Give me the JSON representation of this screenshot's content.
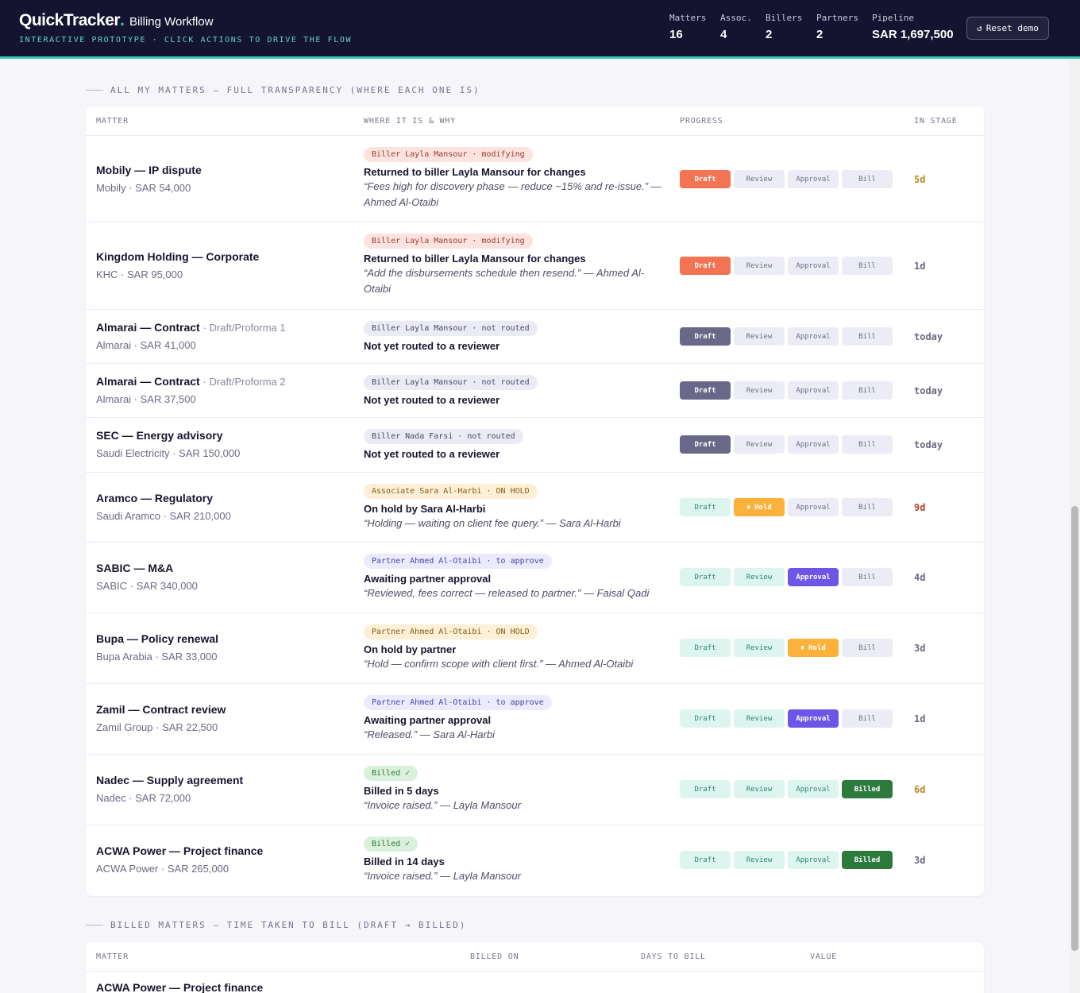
{
  "header": {
    "brand": "QuickTracker",
    "brand_dot": ".",
    "brand_sub": "Billing Workflow",
    "tagline": "INTERACTIVE PROTOTYPE · CLICK ACTIONS TO DRIVE THE FLOW",
    "stats": [
      {
        "label": "Matters",
        "value": "16"
      },
      {
        "label": "Assoc.",
        "value": "4"
      },
      {
        "label": "Billers",
        "value": "2"
      },
      {
        "label": "Partners",
        "value": "2"
      },
      {
        "label": "Pipeline",
        "value": "SAR 1,697,500"
      }
    ],
    "reset_icon": "↺",
    "reset_label": "Reset demo"
  },
  "matters_section": {
    "title": "ALL MY MATTERS — FULL TRANSPARENCY (WHERE EACH ONE IS)",
    "columns": [
      "MATTER",
      "WHERE IT IS & WHY",
      "PROGRESS",
      "IN STAGE"
    ],
    "stage_labels": [
      "Draft",
      "Review",
      "Approval",
      "Bill"
    ],
    "rows": [
      {
        "title": "Mobily — IP dispute",
        "sub": "",
        "client": "Mobily · SAR 54,000",
        "tag": "Biller Layla Mansour · modifying",
        "status": "Returned to biller Layla Mansour for changes",
        "quote": "“Fees high for discovery phase — reduce ~15% and re-issue.” — Ahmed Al-Otaibi",
        "pills": [
          "Draft",
          "Review",
          "Approval",
          "Bill"
        ],
        "in_stage": "5d"
      },
      {
        "title": "Kingdom Holding — Corporate",
        "sub": "",
        "client": "KHC · SAR 95,000",
        "tag": "Biller Layla Mansour · modifying",
        "status": "Returned to biller Layla Mansour for changes",
        "quote": "“Add the disbursements schedule then resend.” — Ahmed Al-Otaibi",
        "pills": [
          "Draft",
          "Review",
          "Approval",
          "Bill"
        ],
        "in_stage": "1d"
      },
      {
        "title": "Almarai — Contract",
        "sub": "· Draft/Proforma 1",
        "client": "Almarai · SAR 41,000",
        "tag": "Biller Layla Mansour · not routed",
        "status": "Not yet routed to a reviewer",
        "quote": "",
        "pills": [
          "Draft",
          "Review",
          "Approval",
          "Bill"
        ],
        "in_stage": "today"
      },
      {
        "title": "Almarai — Contract",
        "sub": "· Draft/Proforma 2",
        "client": "Almarai · SAR 37,500",
        "tag": "Biller Layla Mansour · not routed",
        "status": "Not yet routed to a reviewer",
        "quote": "",
        "pills": [
          "Draft",
          "Review",
          "Approval",
          "Bill"
        ],
        "in_stage": "today"
      },
      {
        "title": "SEC — Energy advisory",
        "sub": "",
        "client": "Saudi Electricity · SAR 150,000",
        "tag": "Biller Nada Farsi · not routed",
        "status": "Not yet routed to a reviewer",
        "quote": "",
        "pills": [
          "Draft",
          "Review",
          "Approval",
          "Bill"
        ],
        "in_stage": "today"
      },
      {
        "title": "Aramco — Regulatory",
        "sub": "",
        "client": "Saudi Aramco · SAR 210,000",
        "tag": "Associate Sara Al-Harbi · ON HOLD",
        "status": "On hold by Sara Al-Harbi",
        "quote": "“Holding — waiting on client fee query.” — Sara Al-Harbi",
        "pills": [
          "Draft",
          "⏸ Hold",
          "Approval",
          "Bill"
        ],
        "in_stage": "9d"
      },
      {
        "title": "SABIC — M&A",
        "sub": "",
        "client": "SABIC · SAR 340,000",
        "tag": "Partner Ahmed Al-Otaibi · to approve",
        "status": "Awaiting partner approval",
        "quote": "“Reviewed, fees correct — released to partner.” — Faisal Qadi",
        "pills": [
          "Draft",
          "Review",
          "Approval",
          "Bill"
        ],
        "in_stage": "4d"
      },
      {
        "title": "Bupa — Policy renewal",
        "sub": "",
        "client": "Bupa Arabia · SAR 33,000",
        "tag": "Partner Ahmed Al-Otaibi · ON HOLD",
        "status": "On hold by partner",
        "quote": "“Hold — confirm scope with client first.” — Ahmed Al-Otaibi",
        "pills": [
          "Draft",
          "Review",
          "⏸ Hold",
          "Bill"
        ],
        "in_stage": "3d"
      },
      {
        "title": "Zamil — Contract review",
        "sub": "",
        "client": "Zamil Group · SAR 22,500",
        "tag": "Partner Ahmed Al-Otaibi · to approve",
        "status": "Awaiting partner approval",
        "quote": "“Released.” — Sara Al-Harbi",
        "pills": [
          "Draft",
          "Review",
          "Approval",
          "Bill"
        ],
        "in_stage": "1d"
      },
      {
        "title": "Nadec — Supply agreement",
        "sub": "",
        "client": "Nadec · SAR 72,000",
        "tag": "Billed ✓",
        "status": "Billed in 5 days",
        "quote": "“Invoice raised.” — Layla Mansour",
        "pills": [
          "Draft",
          "Review",
          "Approval",
          "Billed"
        ],
        "in_stage": "6d"
      },
      {
        "title": "ACWA Power — Project finance",
        "sub": "",
        "client": "ACWA Power · SAR 265,000",
        "tag": "Billed ✓",
        "status": "Billed in 14 days",
        "quote": "“Invoice raised.” — Layla Mansour",
        "pills": [
          "Draft",
          "Review",
          "Approval",
          "Billed"
        ],
        "in_stage": "3d"
      }
    ]
  },
  "billed_section": {
    "title": "BILLED MATTERS — TIME TAKEN TO BILL (DRAFT → BILLED)",
    "columns": [
      "MATTER",
      "BILLED ON",
      "DAYS TO BILL",
      "VALUE"
    ],
    "first_row_matter": "ACWA Power — Project finance"
  },
  "colors": {
    "header_bg": "#141431",
    "accent": "#35c9b3",
    "draft_returned": "#f27452",
    "draft_pending": "#6a6889",
    "hold": "#fbb13a",
    "approval": "#6e55e6",
    "billed": "#2c7a3c"
  }
}
